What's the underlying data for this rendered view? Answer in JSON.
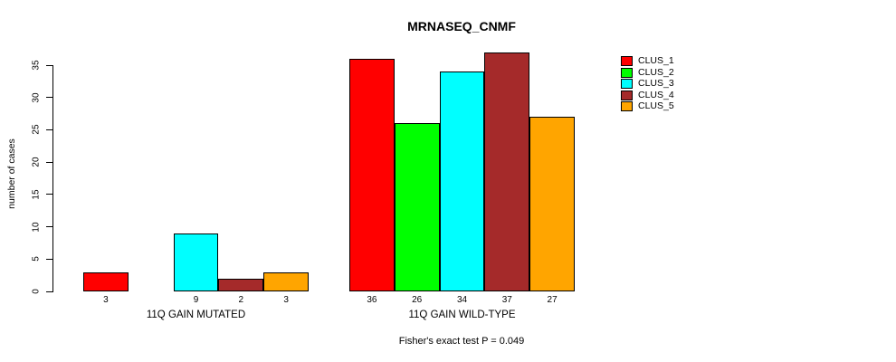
{
  "chart_data": {
    "type": "bar",
    "title": "MRNASEQ_CNMF",
    "ylabel": "number of cases",
    "xlabel": "",
    "ylim": [
      0,
      35
    ],
    "yticks": [
      0,
      5,
      10,
      15,
      20,
      25,
      30,
      35
    ],
    "grid": false,
    "categories": [
      "11Q GAIN MUTATED",
      "11Q GAIN WILD-TYPE"
    ],
    "series": [
      {
        "name": "CLUS_1",
        "color": "#ff0000",
        "values": [
          3,
          36
        ]
      },
      {
        "name": "CLUS_2",
        "color": "#00ff00",
        "values": [
          0,
          26
        ]
      },
      {
        "name": "CLUS_3",
        "color": "#00ffff",
        "values": [
          9,
          34
        ]
      },
      {
        "name": "CLUS_4",
        "color": "#a52a2a",
        "values": [
          2,
          37
        ]
      },
      {
        "name": "CLUS_5",
        "color": "#ffa500",
        "values": [
          3,
          27
        ]
      }
    ],
    "bar_value_labels": true,
    "hide_zero_value_labels": true,
    "legend": {
      "position": "right",
      "entries": [
        "CLUS_1",
        "CLUS_2",
        "CLUS_3",
        "CLUS_4",
        "CLUS_5"
      ]
    },
    "annotation": "Fisher's exact test P = 0.049"
  }
}
